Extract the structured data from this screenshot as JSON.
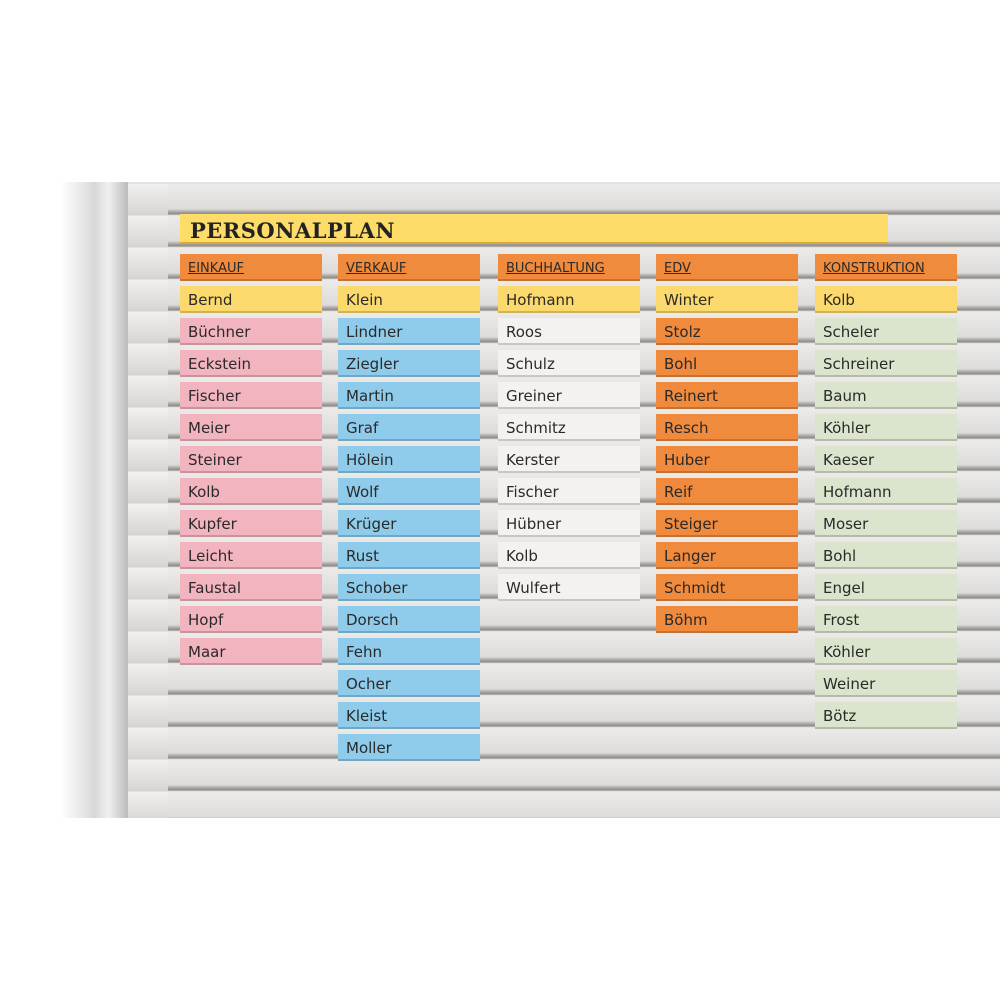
{
  "title": "PERSONALPLAN",
  "colors": {
    "header": "#f08a3c",
    "lead": "#fcd96c",
    "pink": "#f2b5c0",
    "blue": "#8fcbea",
    "white": "#f4f2f0",
    "orange": "#f08a3c",
    "green": "#dbe5cd"
  },
  "columns": [
    {
      "header": "EINKAUF",
      "lead": "Bernd",
      "color": "pink",
      "names": [
        "Büchner",
        "Eckstein",
        "Fischer",
        "Meier",
        "Steiner",
        "Kolb",
        "Kupfer",
        "Leicht",
        "Faustal",
        "Hopf",
        "Maar"
      ]
    },
    {
      "header": "VERKAUF",
      "lead": "Klein",
      "color": "blue",
      "names": [
        "Lindner",
        "Ziegler",
        "Martin",
        "Graf",
        "Hölein",
        "Wolf",
        "Krüger",
        "Rust",
        "Schober",
        "Dorsch",
        "Fehn",
        "Ocher",
        "Kleist",
        "Moller"
      ]
    },
    {
      "header": "BUCHHALTUNG",
      "lead": "Hofmann",
      "color": "white",
      "names": [
        "Roos",
        "Schulz",
        "Greiner",
        "Schmitz",
        "Kerster",
        "Fischer",
        "Hübner",
        "Kolb",
        "Wulfert"
      ]
    },
    {
      "header": "EDV",
      "lead": "Winter",
      "color": "orange",
      "names": [
        "Stolz",
        "Bohl",
        "Reinert",
        "Resch",
        "Huber",
        "Reif",
        "Steiger",
        "Langer",
        "Schmidt",
        "Böhm"
      ]
    },
    {
      "header": "KONSTRUKTION",
      "lead": "Kolb",
      "color": "green",
      "names": [
        "Scheler",
        "Schreiner",
        "Baum",
        "Köhler",
        "Kaeser",
        "Hofmann",
        "Moser",
        "Bohl",
        "Engel",
        "Frost",
        "Köhler",
        "Weiner",
        "Bötz"
      ]
    }
  ]
}
